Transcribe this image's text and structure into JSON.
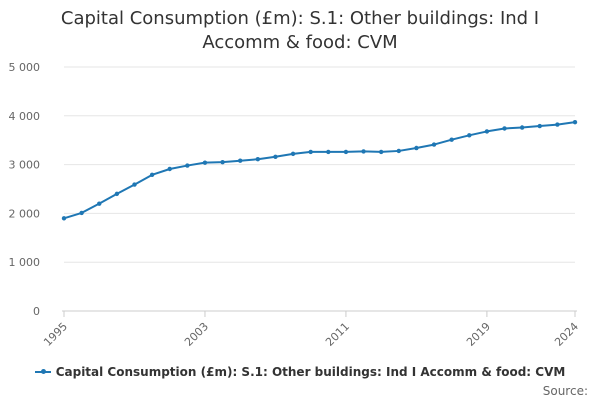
{
  "chart_title_lines": [
    "Capital Consumption (£m): S.1: Other buildings: Ind I",
    "Accomm & food: CVM"
  ],
  "source_label": "Source:",
  "chart_data": {
    "type": "line",
    "title": "Capital Consumption (£m): S.1: Other buildings: Ind I Accomm & food: CVM",
    "xlabel": "",
    "ylabel": "",
    "x": [
      1995,
      1996,
      1997,
      1998,
      1999,
      2000,
      2001,
      2002,
      2003,
      2004,
      2005,
      2006,
      2007,
      2008,
      2009,
      2010,
      2011,
      2012,
      2013,
      2014,
      2015,
      2016,
      2017,
      2018,
      2019,
      2020,
      2021,
      2022,
      2023,
      2024
    ],
    "xticks": [
      1995,
      2003,
      2011,
      2019,
      2024
    ],
    "ylim": [
      0,
      5000
    ],
    "yticks": [
      0,
      1000,
      2000,
      3000,
      4000,
      5000
    ],
    "ytick_labels": [
      "0",
      "1 000",
      "2 000",
      "3 000",
      "4 000",
      "5 000"
    ],
    "grid": true,
    "legend_position": "bottom",
    "color": "#1f77b4",
    "series": [
      {
        "name": "Capital Consumption (£m): S.1: Other buildings: Ind I Accomm & food: CVM",
        "values": [
          1900,
          2010,
          2200,
          2400,
          2590,
          2790,
          2910,
          2980,
          3040,
          3050,
          3080,
          3110,
          3160,
          3220,
          3260,
          3260,
          3260,
          3270,
          3260,
          3280,
          3340,
          3410,
          3510,
          3600,
          3680,
          3740,
          3760,
          3790,
          3820,
          3870
        ]
      }
    ]
  }
}
